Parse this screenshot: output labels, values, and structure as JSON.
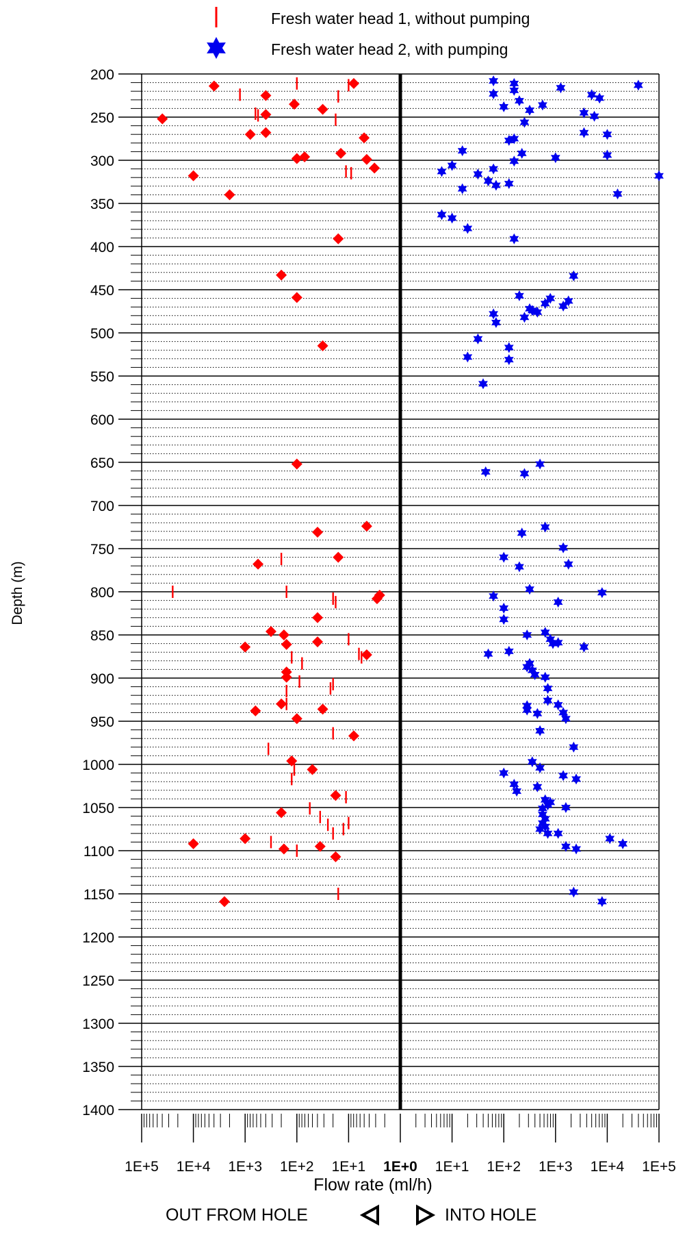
{
  "chart_data": {
    "type": "scatter",
    "title": "",
    "xlabel": "Flow rate (ml/h)",
    "ylabel": "Depth (m)",
    "direction_labels": {
      "left": "OUT FROM HOLE",
      "right": "INTO  HOLE"
    },
    "x_scale": "symmetric-log",
    "x_tick_labels": [
      "1E+5",
      "1E+4",
      "1E+3",
      "1E+2",
      "1E+1",
      "1E+0",
      "1E+1",
      "1E+2",
      "1E+3",
      "1E+4",
      "1E+5"
    ],
    "ylim": [
      1400,
      200
    ],
    "y_major_step": 50,
    "y_minor_step": 10,
    "grid": true,
    "legend_position": "top",
    "colors": {
      "head1": "#ff0000",
      "head2": "#0000ee"
    },
    "series": [
      {
        "name": "Fresh water head 1, without pumping",
        "marker": "vertical-tick",
        "color": "#ff0000",
        "note": "negative x = out from hole (log10 magnitude)",
        "points": [
          [
            -2.0,
            211
          ],
          [
            -1.0,
            213
          ],
          [
            -3.1,
            224
          ],
          [
            -1.2,
            226
          ],
          [
            -2.8,
            246
          ],
          [
            -2.75,
            248
          ],
          [
            -1.25,
            253
          ],
          [
            -1.05,
            313
          ],
          [
            -0.95,
            315
          ],
          [
            -4.4,
            800
          ],
          [
            -2.2,
            800
          ],
          [
            -2.3,
            762
          ],
          [
            -1.3,
            808
          ],
          [
            -1.25,
            812
          ],
          [
            -1.0,
            855
          ],
          [
            -0.8,
            872
          ],
          [
            -0.75,
            876
          ],
          [
            -2.1,
            876
          ],
          [
            -1.9,
            883
          ],
          [
            -1.95,
            904
          ],
          [
            -1.3,
            907
          ],
          [
            -2.2,
            915
          ],
          [
            -1.35,
            912
          ],
          [
            -2.2,
            930
          ],
          [
            -1.3,
            964
          ],
          [
            -2.55,
            982
          ],
          [
            -2.05,
            1006
          ],
          [
            -2.1,
            1017
          ],
          [
            -1.05,
            1038
          ],
          [
            -1.75,
            1051
          ],
          [
            -1.55,
            1061
          ],
          [
            -1.0,
            1068
          ],
          [
            -1.4,
            1070
          ],
          [
            -1.2,
            1150
          ],
          [
            -1.1,
            1075
          ],
          [
            -1.3,
            1080
          ],
          [
            -2.5,
            1090
          ],
          [
            -2.0,
            1100
          ]
        ]
      },
      {
        "name": "Fresh water head 2, with pumping",
        "marker": "diamond",
        "color": "#ff0000",
        "points": [
          [
            -3.6,
            214
          ],
          [
            -2.6,
            225
          ],
          [
            -2.05,
            235
          ],
          [
            -1.5,
            241
          ],
          [
            -2.6,
            247
          ],
          [
            -4.6,
            252
          ],
          [
            -0.9,
            211
          ],
          [
            -2.9,
            270
          ],
          [
            -2.6,
            268
          ],
          [
            -0.7,
            274
          ],
          [
            -1.15,
            292
          ],
          [
            -1.85,
            296
          ],
          [
            -2.0,
            298
          ],
          [
            -0.65,
            299
          ],
          [
            -0.5,
            309
          ],
          [
            -4.0,
            318
          ],
          [
            -3.3,
            340
          ],
          [
            -1.2,
            391
          ],
          [
            -2.3,
            433
          ],
          [
            -2.0,
            459
          ],
          [
            -1.5,
            515
          ],
          [
            -2.0,
            652
          ],
          [
            -0.65,
            724
          ],
          [
            -1.6,
            731
          ],
          [
            -1.2,
            760
          ],
          [
            -2.75,
            768
          ],
          [
            -0.4,
            804
          ],
          [
            -0.45,
            808
          ],
          [
            -1.6,
            830
          ],
          [
            -2.5,
            846
          ],
          [
            -2.25,
            850
          ],
          [
            -1.6,
            858
          ],
          [
            -2.2,
            861
          ],
          [
            -3.0,
            864
          ],
          [
            -0.65,
            873
          ],
          [
            -2.2,
            893
          ],
          [
            -2.2,
            899
          ],
          [
            -2.3,
            930
          ],
          [
            -2.8,
            938
          ],
          [
            -1.5,
            936
          ],
          [
            -2.0,
            947
          ],
          [
            -0.9,
            967
          ],
          [
            -2.1,
            996
          ],
          [
            -1.7,
            1006
          ],
          [
            -1.25,
            1036
          ],
          [
            -2.3,
            1056
          ],
          [
            -3.0,
            1086
          ],
          [
            -1.55,
            1095
          ],
          [
            -2.25,
            1098
          ],
          [
            -1.25,
            1107
          ],
          [
            -4.0,
            1092
          ],
          [
            -3.4,
            1159
          ]
        ]
      },
      {
        "name": "Fresh water head 2, with pumping",
        "marker": "star",
        "color": "#0000ee",
        "note": "positive x = into hole (log10 magnitude)",
        "points": [
          [
            1.8,
            208
          ],
          [
            2.2,
            211
          ],
          [
            4.6,
            213
          ],
          [
            3.1,
            216
          ],
          [
            2.2,
            219
          ],
          [
            1.8,
            223
          ],
          [
            2.3,
            231
          ],
          [
            3.7,
            224
          ],
          [
            3.85,
            228
          ],
          [
            2.75,
            236
          ],
          [
            2.0,
            238
          ],
          [
            2.5,
            242
          ],
          [
            3.55,
            245
          ],
          [
            3.75,
            249
          ],
          [
            2.4,
            256
          ],
          [
            3.55,
            268
          ],
          [
            4.0,
            270
          ],
          [
            2.2,
            275
          ],
          [
            2.1,
            277
          ],
          [
            1.2,
            289
          ],
          [
            2.35,
            292
          ],
          [
            3.0,
            297
          ],
          [
            4.0,
            294
          ],
          [
            2.2,
            301
          ],
          [
            1.0,
            306
          ],
          [
            0.8,
            313
          ],
          [
            1.5,
            316
          ],
          [
            1.8,
            310
          ],
          [
            1.7,
            324
          ],
          [
            1.85,
            329
          ],
          [
            2.1,
            327
          ],
          [
            1.2,
            333
          ],
          [
            5.0,
            318
          ],
          [
            4.2,
            339
          ],
          [
            0.8,
            363
          ],
          [
            1.0,
            367
          ],
          [
            1.3,
            379
          ],
          [
            2.2,
            391
          ],
          [
            3.35,
            434
          ],
          [
            2.3,
            457
          ],
          [
            2.9,
            460
          ],
          [
            2.8,
            466
          ],
          [
            3.25,
            463
          ],
          [
            3.15,
            469
          ],
          [
            2.5,
            472
          ],
          [
            2.55,
            474
          ],
          [
            2.65,
            476
          ],
          [
            1.8,
            478
          ],
          [
            2.4,
            482
          ],
          [
            1.85,
            488
          ],
          [
            1.5,
            507
          ],
          [
            2.1,
            517
          ],
          [
            1.3,
            528
          ],
          [
            2.1,
            531
          ],
          [
            1.6,
            559
          ],
          [
            2.7,
            652
          ],
          [
            1.65,
            661
          ],
          [
            2.4,
            663
          ],
          [
            2.35,
            732
          ],
          [
            2.8,
            725
          ],
          [
            3.15,
            749
          ],
          [
            3.25,
            768
          ],
          [
            2.0,
            760
          ],
          [
            2.3,
            771
          ],
          [
            2.5,
            797
          ],
          [
            1.8,
            805
          ],
          [
            3.05,
            812
          ],
          [
            3.9,
            801
          ],
          [
            2.0,
            819
          ],
          [
            2.0,
            832
          ],
          [
            2.45,
            850
          ],
          [
            2.8,
            847
          ],
          [
            2.9,
            855
          ],
          [
            2.95,
            860
          ],
          [
            3.05,
            859
          ],
          [
            3.55,
            864
          ],
          [
            1.7,
            872
          ],
          [
            2.1,
            869
          ],
          [
            2.5,
            883
          ],
          [
            2.45,
            887
          ],
          [
            2.55,
            891
          ],
          [
            2.6,
            896
          ],
          [
            2.8,
            899
          ],
          [
            2.85,
            912
          ],
          [
            2.85,
            926
          ],
          [
            3.05,
            931
          ],
          [
            2.45,
            932
          ],
          [
            2.45,
            937
          ],
          [
            2.65,
            941
          ],
          [
            3.15,
            940
          ],
          [
            3.2,
            947
          ],
          [
            2.7,
            961
          ],
          [
            3.35,
            980
          ],
          [
            2.55,
            997
          ],
          [
            2.7,
            1004
          ],
          [
            2.0,
            1010
          ],
          [
            2.2,
            1023
          ],
          [
            3.15,
            1013
          ],
          [
            3.4,
            1017
          ],
          [
            2.65,
            1026
          ],
          [
            2.25,
            1031
          ],
          [
            2.8,
            1041
          ],
          [
            2.9,
            1044
          ],
          [
            2.85,
            1047
          ],
          [
            2.75,
            1051
          ],
          [
            3.2,
            1050
          ],
          [
            2.75,
            1058
          ],
          [
            2.8,
            1063
          ],
          [
            2.75,
            1068
          ],
          [
            2.8,
            1072
          ],
          [
            2.7,
            1075
          ],
          [
            2.85,
            1080
          ],
          [
            3.05,
            1080
          ],
          [
            4.05,
            1086
          ],
          [
            4.3,
            1092
          ],
          [
            3.2,
            1095
          ],
          [
            3.4,
            1098
          ],
          [
            3.35,
            1148
          ],
          [
            3.9,
            1159
          ]
        ]
      }
    ]
  }
}
